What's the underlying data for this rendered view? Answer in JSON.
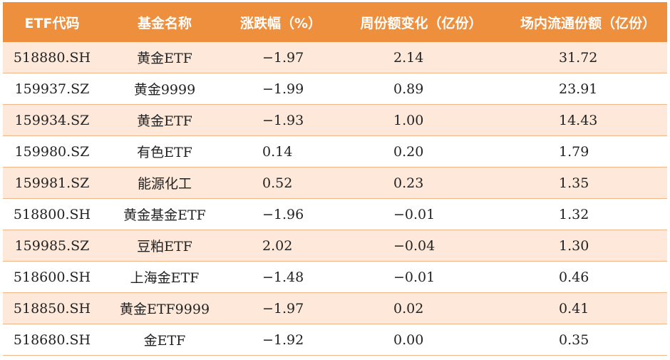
{
  "table": {
    "headers": [
      "ETF代码",
      "基金名称",
      "涨跌幅（%）",
      "周份额变化（亿份）",
      "场内流通份额（亿份）"
    ],
    "rows": [
      {
        "code": "518880.SH",
        "name": "黄金ETF",
        "change": "-1.97",
        "weekly": "2.14",
        "float": "31.72"
      },
      {
        "code": "159937.SZ",
        "name": "黄金9999",
        "change": "-1.99",
        "weekly": "0.89",
        "float": "23.91"
      },
      {
        "code": "159934.SZ",
        "name": "黄金ETF",
        "change": "-1.93",
        "weekly": "1.00",
        "float": "14.43"
      },
      {
        "code": "159980.SZ",
        "name": "有色ETF",
        "change": "0.14",
        "weekly": "0.20",
        "float": "1.79"
      },
      {
        "code": "159981.SZ",
        "name": "能源化工",
        "change": "0.52",
        "weekly": "0.23",
        "float": "1.35"
      },
      {
        "code": "518800.SH",
        "name": "黄金基金ETF",
        "change": "-1.96",
        "weekly": "-0.01",
        "float": "1.32"
      },
      {
        "code": "159985.SZ",
        "name": "豆粕ETF",
        "change": "2.02",
        "weekly": "-0.04",
        "float": "1.30"
      },
      {
        "code": "518600.SH",
        "name": "上海金ETF",
        "change": "-1.48",
        "weekly": "-0.01",
        "float": "0.46"
      },
      {
        "code": "518850.SH",
        "name": "黄金ETF9999",
        "change": "-1.97",
        "weekly": "0.02",
        "float": "0.41"
      },
      {
        "code": "518680.SH",
        "name": "金ETF",
        "change": "-1.92",
        "weekly": "0.00",
        "float": "0.35"
      }
    ]
  },
  "colors": {
    "header_bg": "#ee8f3e",
    "stripe_bg": "#fde8da",
    "row_border": "#f1b78a"
  }
}
